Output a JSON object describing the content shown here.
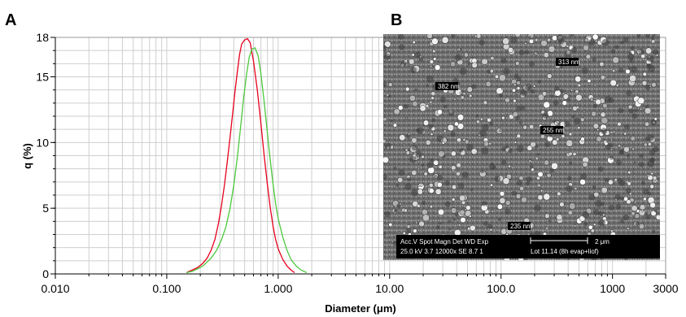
{
  "panels": {
    "a_letter": "A",
    "b_letter": "B"
  },
  "chart_data": {
    "type": "line",
    "title": "",
    "xlabel": "Diameter (μm)",
    "ylabel": "q (%)",
    "x_scale": "log",
    "xlim": [
      0.01,
      3000
    ],
    "ylim": [
      0,
      18
    ],
    "grid": true,
    "x_tick_labels": [
      {
        "value": 0.01,
        "label": "0.010"
      },
      {
        "value": 0.1,
        "label": "0.100"
      },
      {
        "value": 1,
        "label": "1.000"
      },
      {
        "value": 10,
        "label": "10.00"
      },
      {
        "value": 100,
        "label": "100.0"
      },
      {
        "value": 1000,
        "label": "1000"
      },
      {
        "value": 3000,
        "label": "3000"
      }
    ],
    "y_tick_labels": [
      {
        "value": 0,
        "label": "0"
      },
      {
        "value": 5,
        "label": "5"
      },
      {
        "value": 10,
        "label": "10"
      },
      {
        "value": 15,
        "label": "15"
      },
      {
        "value": 18,
        "label": "18"
      }
    ],
    "series": [
      {
        "color": "#e8001c",
        "points": [
          [
            0.15,
            0.1
          ],
          [
            0.17,
            0.3
          ],
          [
            0.19,
            0.5
          ],
          [
            0.21,
            0.8
          ],
          [
            0.23,
            1.2
          ],
          [
            0.25,
            1.8
          ],
          [
            0.27,
            2.6
          ],
          [
            0.29,
            3.8
          ],
          [
            0.31,
            5.2
          ],
          [
            0.33,
            6.8
          ],
          [
            0.35,
            8.6
          ],
          [
            0.37,
            10.4
          ],
          [
            0.39,
            12.2
          ],
          [
            0.41,
            13.9
          ],
          [
            0.43,
            15.4
          ],
          [
            0.45,
            16.7
          ],
          [
            0.47,
            17.5
          ],
          [
            0.5,
            17.8
          ],
          [
            0.53,
            17.9
          ],
          [
            0.56,
            17.6
          ],
          [
            0.6,
            16.2
          ],
          [
            0.65,
            14.0
          ],
          [
            0.7,
            11.4
          ],
          [
            0.75,
            8.9
          ],
          [
            0.8,
            6.8
          ],
          [
            0.85,
            5.0
          ],
          [
            0.9,
            3.6
          ],
          [
            0.95,
            2.6
          ],
          [
            1.0,
            1.9
          ],
          [
            1.1,
            1.1
          ],
          [
            1.2,
            0.6
          ],
          [
            1.3,
            0.3
          ],
          [
            1.4,
            0.1
          ]
        ]
      },
      {
        "color": "#4cc83c",
        "points": [
          [
            0.15,
            0.1
          ],
          [
            0.17,
            0.2
          ],
          [
            0.19,
            0.4
          ],
          [
            0.21,
            0.6
          ],
          [
            0.23,
            0.9
          ],
          [
            0.25,
            1.2
          ],
          [
            0.28,
            1.8
          ],
          [
            0.31,
            2.6
          ],
          [
            0.34,
            3.6
          ],
          [
            0.37,
            5.0
          ],
          [
            0.4,
            6.8
          ],
          [
            0.43,
            8.9
          ],
          [
            0.46,
            11.2
          ],
          [
            0.49,
            13.4
          ],
          [
            0.52,
            15.2
          ],
          [
            0.55,
            16.5
          ],
          [
            0.58,
            17.1
          ],
          [
            0.62,
            17.2
          ],
          [
            0.66,
            16.6
          ],
          [
            0.7,
            15.2
          ],
          [
            0.75,
            13.0
          ],
          [
            0.8,
            10.7
          ],
          [
            0.85,
            8.6
          ],
          [
            0.9,
            6.8
          ],
          [
            0.95,
            5.3
          ],
          [
            1.0,
            4.2
          ],
          [
            1.1,
            2.8
          ],
          [
            1.2,
            1.8
          ],
          [
            1.3,
            1.1
          ],
          [
            1.45,
            0.6
          ],
          [
            1.6,
            0.3
          ],
          [
            1.8,
            0.1
          ]
        ]
      }
    ]
  },
  "sem_image": {
    "annotations": [
      {
        "text": "313 nm"
      },
      {
        "text": "382 nm"
      },
      {
        "text": "255 nm"
      },
      {
        "text": "235 nm"
      }
    ],
    "info_bar": {
      "row1_left": "Acc.V  Spot Magn   Det  WD  Exp",
      "row2_left": "25.0 kV 3.7   12000x  SE  8.7   1",
      "scale_label": "2 μm",
      "row2_right": "Lot 11.14 (8h evap+liof)"
    }
  }
}
